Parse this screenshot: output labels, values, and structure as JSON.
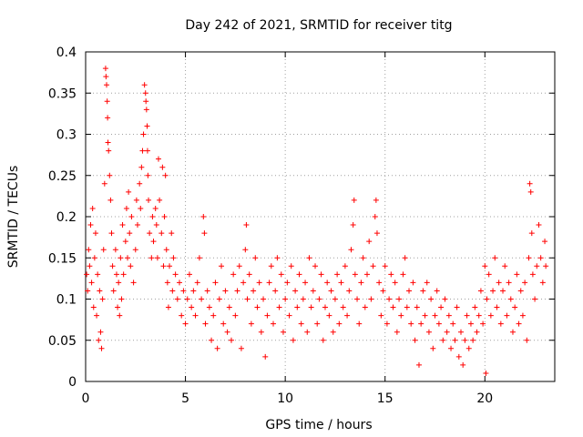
{
  "chart_data": {
    "type": "scatter",
    "title": "Day 242 of 2021, SRMTID for receiver titg",
    "xlabel": "GPS time / hours",
    "ylabel": "SRMTID / TECUs",
    "xlim": [
      0,
      23.5
    ],
    "ylim": [
      0,
      0.4
    ],
    "xticks": [
      "0",
      "5",
      "10",
      "15",
      "20"
    ],
    "yticks": [
      "0",
      "0.05",
      "0.1",
      "0.15",
      "0.2",
      "0.25",
      "0.3",
      "0.35",
      "0.4"
    ],
    "marker": "+",
    "color": "#ff0000",
    "grid": true,
    "legend": "none",
    "series": [
      {
        "name": "titg",
        "points": [
          [
            0.05,
            0.13
          ],
          [
            0.1,
            0.11
          ],
          [
            0.15,
            0.16
          ],
          [
            0.2,
            0.14
          ],
          [
            0.25,
            0.19
          ],
          [
            0.3,
            0.12
          ],
          [
            0.35,
            0.21
          ],
          [
            0.4,
            0.09
          ],
          [
            0.45,
            0.15
          ],
          [
            0.5,
            0.18
          ],
          [
            0.55,
            0.08
          ],
          [
            0.6,
            0.13
          ],
          [
            0.65,
            0.05
          ],
          [
            0.7,
            0.11
          ],
          [
            0.75,
            0.06
          ],
          [
            0.8,
            0.04
          ],
          [
            0.85,
            0.1
          ],
          [
            0.9,
            0.16
          ],
          [
            0.95,
            0.24
          ],
          [
            1.0,
            0.38
          ],
          [
            1.02,
            0.37
          ],
          [
            1.05,
            0.36
          ],
          [
            1.08,
            0.34
          ],
          [
            1.1,
            0.32
          ],
          [
            1.12,
            0.29
          ],
          [
            1.15,
            0.28
          ],
          [
            1.2,
            0.25
          ],
          [
            1.25,
            0.22
          ],
          [
            1.3,
            0.18
          ],
          [
            1.35,
            0.14
          ],
          [
            1.4,
            0.11
          ],
          [
            1.5,
            0.16
          ],
          [
            1.55,
            0.13
          ],
          [
            1.6,
            0.09
          ],
          [
            1.65,
            0.12
          ],
          [
            1.7,
            0.08
          ],
          [
            1.75,
            0.15
          ],
          [
            1.8,
            0.1
          ],
          [
            1.85,
            0.19
          ],
          [
            1.9,
            0.13
          ],
          [
            2.0,
            0.17
          ],
          [
            2.05,
            0.21
          ],
          [
            2.1,
            0.15
          ],
          [
            2.15,
            0.23
          ],
          [
            2.2,
            0.18
          ],
          [
            2.25,
            0.14
          ],
          [
            2.3,
            0.2
          ],
          [
            2.4,
            0.12
          ],
          [
            2.5,
            0.16
          ],
          [
            2.55,
            0.22
          ],
          [
            2.6,
            0.19
          ],
          [
            2.7,
            0.24
          ],
          [
            2.75,
            0.21
          ],
          [
            2.8,
            0.26
          ],
          [
            2.85,
            0.28
          ],
          [
            2.9,
            0.3
          ],
          [
            2.95,
            0.36
          ],
          [
            3.0,
            0.35
          ],
          [
            3.02,
            0.34
          ],
          [
            3.05,
            0.33
          ],
          [
            3.08,
            0.31
          ],
          [
            3.1,
            0.28
          ],
          [
            3.12,
            0.25
          ],
          [
            3.15,
            0.22
          ],
          [
            3.2,
            0.18
          ],
          [
            3.3,
            0.15
          ],
          [
            3.35,
            0.2
          ],
          [
            3.4,
            0.17
          ],
          [
            3.5,
            0.21
          ],
          [
            3.55,
            0.19
          ],
          [
            3.6,
            0.15
          ],
          [
            3.65,
            0.27
          ],
          [
            3.7,
            0.22
          ],
          [
            3.8,
            0.18
          ],
          [
            3.85,
            0.26
          ],
          [
            3.9,
            0.14
          ],
          [
            3.95,
            0.2
          ],
          [
            4.0,
            0.25
          ],
          [
            4.05,
            0.16
          ],
          [
            4.1,
            0.12
          ],
          [
            4.15,
            0.09
          ],
          [
            4.2,
            0.14
          ],
          [
            4.3,
            0.18
          ],
          [
            4.35,
            0.11
          ],
          [
            4.4,
            0.15
          ],
          [
            4.5,
            0.13
          ],
          [
            4.6,
            0.1
          ],
          [
            4.7,
            0.12
          ],
          [
            4.8,
            0.08
          ],
          [
            4.9,
            0.11
          ],
          [
            5.0,
            0.07
          ],
          [
            5.1,
            0.1
          ],
          [
            5.2,
            0.13
          ],
          [
            5.3,
            0.09
          ],
          [
            5.4,
            0.11
          ],
          [
            5.5,
            0.08
          ],
          [
            5.6,
            0.12
          ],
          [
            5.7,
            0.15
          ],
          [
            5.8,
            0.1
          ],
          [
            5.9,
            0.2
          ],
          [
            5.95,
            0.18
          ],
          [
            6.0,
            0.07
          ],
          [
            6.1,
            0.11
          ],
          [
            6.2,
            0.09
          ],
          [
            6.3,
            0.05
          ],
          [
            6.4,
            0.08
          ],
          [
            6.5,
            0.12
          ],
          [
            6.6,
            0.04
          ],
          [
            6.7,
            0.1
          ],
          [
            6.8,
            0.14
          ],
          [
            6.9,
            0.07
          ],
          [
            7.0,
            0.11
          ],
          [
            7.1,
            0.06
          ],
          [
            7.2,
            0.09
          ],
          [
            7.3,
            0.05
          ],
          [
            7.4,
            0.13
          ],
          [
            7.5,
            0.08
          ],
          [
            7.6,
            0.11
          ],
          [
            7.7,
            0.14
          ],
          [
            7.8,
            0.04
          ],
          [
            7.9,
            0.12
          ],
          [
            8.0,
            0.16
          ],
          [
            8.05,
            0.19
          ],
          [
            8.1,
            0.1
          ],
          [
            8.2,
            0.13
          ],
          [
            8.3,
            0.07
          ],
          [
            8.4,
            0.11
          ],
          [
            8.5,
            0.15
          ],
          [
            8.6,
            0.09
          ],
          [
            8.7,
            0.12
          ],
          [
            8.8,
            0.06
          ],
          [
            8.9,
            0.1
          ],
          [
            9.0,
            0.03
          ],
          [
            9.1,
            0.08
          ],
          [
            9.2,
            0.12
          ],
          [
            9.3,
            0.14
          ],
          [
            9.4,
            0.07
          ],
          [
            9.5,
            0.11
          ],
          [
            9.6,
            0.15
          ],
          [
            9.7,
            0.09
          ],
          [
            9.8,
            0.13
          ],
          [
            9.9,
            0.06
          ],
          [
            10.0,
            0.1
          ],
          [
            10.1,
            0.12
          ],
          [
            10.2,
            0.08
          ],
          [
            10.3,
            0.14
          ],
          [
            10.4,
            0.05
          ],
          [
            10.5,
            0.11
          ],
          [
            10.6,
            0.09
          ],
          [
            10.7,
            0.13
          ],
          [
            10.8,
            0.07
          ],
          [
            10.9,
            0.1
          ],
          [
            11.0,
            0.12
          ],
          [
            11.1,
            0.06
          ],
          [
            11.2,
            0.15
          ],
          [
            11.3,
            0.09
          ],
          [
            11.4,
            0.11
          ],
          [
            11.5,
            0.14
          ],
          [
            11.6,
            0.07
          ],
          [
            11.7,
            0.1
          ],
          [
            11.8,
            0.13
          ],
          [
            11.9,
            0.05
          ],
          [
            12.0,
            0.09
          ],
          [
            12.1,
            0.12
          ],
          [
            12.2,
            0.08
          ],
          [
            12.3,
            0.11
          ],
          [
            12.4,
            0.06
          ],
          [
            12.5,
            0.1
          ],
          [
            12.6,
            0.13
          ],
          [
            12.7,
            0.07
          ],
          [
            12.8,
            0.12
          ],
          [
            12.9,
            0.09
          ],
          [
            13.0,
            0.14
          ],
          [
            13.1,
            0.08
          ],
          [
            13.2,
            0.11
          ],
          [
            13.3,
            0.16
          ],
          [
            13.4,
            0.19
          ],
          [
            13.45,
            0.22
          ],
          [
            13.5,
            0.13
          ],
          [
            13.6,
            0.1
          ],
          [
            13.7,
            0.07
          ],
          [
            13.8,
            0.12
          ],
          [
            13.9,
            0.15
          ],
          [
            14.0,
            0.09
          ],
          [
            14.1,
            0.13
          ],
          [
            14.2,
            0.17
          ],
          [
            14.3,
            0.1
          ],
          [
            14.4,
            0.14
          ],
          [
            14.5,
            0.2
          ],
          [
            14.55,
            0.22
          ],
          [
            14.6,
            0.18
          ],
          [
            14.7,
            0.12
          ],
          [
            14.8,
            0.08
          ],
          [
            14.9,
            0.11
          ],
          [
            15.0,
            0.14
          ],
          [
            15.1,
            0.07
          ],
          [
            15.2,
            0.1
          ],
          [
            15.3,
            0.13
          ],
          [
            15.4,
            0.09
          ],
          [
            15.5,
            0.12
          ],
          [
            15.6,
            0.06
          ],
          [
            15.7,
            0.1
          ],
          [
            15.8,
            0.08
          ],
          [
            15.9,
            0.13
          ],
          [
            16.0,
            0.15
          ],
          [
            16.1,
            0.09
          ],
          [
            16.2,
            0.11
          ],
          [
            16.3,
            0.07
          ],
          [
            16.4,
            0.12
          ],
          [
            16.5,
            0.05
          ],
          [
            16.6,
            0.09
          ],
          [
            16.7,
            0.02
          ],
          [
            16.8,
            0.07
          ],
          [
            16.9,
            0.11
          ],
          [
            17.0,
            0.08
          ],
          [
            17.1,
            0.12
          ],
          [
            17.2,
            0.06
          ],
          [
            17.3,
            0.1
          ],
          [
            17.4,
            0.04
          ],
          [
            17.5,
            0.08
          ],
          [
            17.6,
            0.11
          ],
          [
            17.7,
            0.07
          ],
          [
            17.8,
            0.09
          ],
          [
            17.9,
            0.05
          ],
          [
            18.0,
            0.1
          ],
          [
            18.1,
            0.06
          ],
          [
            18.2,
            0.08
          ],
          [
            18.3,
            0.04
          ],
          [
            18.4,
            0.07
          ],
          [
            18.5,
            0.05
          ],
          [
            18.6,
            0.09
          ],
          [
            18.7,
            0.03
          ],
          [
            18.8,
            0.06
          ],
          [
            18.9,
            0.02
          ],
          [
            19.0,
            0.05
          ],
          [
            19.1,
            0.08
          ],
          [
            19.2,
            0.04
          ],
          [
            19.3,
            0.07
          ],
          [
            19.4,
            0.05
          ],
          [
            19.5,
            0.09
          ],
          [
            19.6,
            0.06
          ],
          [
            19.7,
            0.08
          ],
          [
            19.8,
            0.11
          ],
          [
            19.9,
            0.07
          ],
          [
            20.0,
            0.14
          ],
          [
            20.05,
            0.01
          ],
          [
            20.1,
            0.1
          ],
          [
            20.2,
            0.13
          ],
          [
            20.3,
            0.08
          ],
          [
            20.4,
            0.11
          ],
          [
            20.5,
            0.15
          ],
          [
            20.6,
            0.09
          ],
          [
            20.7,
            0.12
          ],
          [
            20.8,
            0.07
          ],
          [
            20.9,
            0.11
          ],
          [
            21.0,
            0.14
          ],
          [
            21.1,
            0.08
          ],
          [
            21.2,
            0.12
          ],
          [
            21.3,
            0.1
          ],
          [
            21.4,
            0.06
          ],
          [
            21.5,
            0.09
          ],
          [
            21.6,
            0.13
          ],
          [
            21.7,
            0.07
          ],
          [
            21.8,
            0.11
          ],
          [
            21.9,
            0.08
          ],
          [
            22.0,
            0.12
          ],
          [
            22.1,
            0.05
          ],
          [
            22.2,
            0.15
          ],
          [
            22.25,
            0.24
          ],
          [
            22.3,
            0.23
          ],
          [
            22.35,
            0.18
          ],
          [
            22.4,
            0.13
          ],
          [
            22.5,
            0.1
          ],
          [
            22.6,
            0.14
          ],
          [
            22.7,
            0.19
          ],
          [
            22.8,
            0.15
          ],
          [
            22.9,
            0.12
          ],
          [
            23.0,
            0.17
          ],
          [
            23.05,
            0.14
          ]
        ]
      }
    ]
  }
}
